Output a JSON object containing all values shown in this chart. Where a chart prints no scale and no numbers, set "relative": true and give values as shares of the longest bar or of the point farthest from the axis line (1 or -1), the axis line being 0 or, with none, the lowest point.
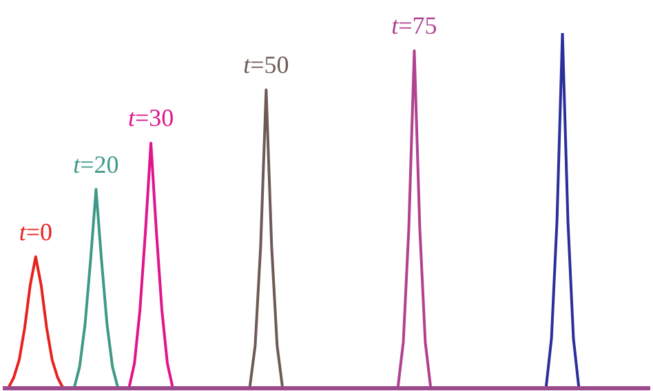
{
  "chart_data": {
    "type": "line",
    "relative": true,
    "grid": false,
    "legend": false,
    "marker": "none",
    "line_style": "solid",
    "categories": [
      null,
      null,
      null,
      null,
      null,
      null,
      null,
      null,
      null,
      null,
      null,
      null,
      null,
      null,
      null,
      null,
      null,
      null,
      null,
      null,
      null,
      null,
      null,
      null,
      null,
      null,
      null,
      null,
      null,
      null,
      null,
      null,
      null,
      null,
      null,
      null,
      null,
      null,
      null,
      null,
      null,
      null,
      null,
      null,
      null,
      null,
      null,
      null,
      null,
      null,
      null,
      null,
      null,
      null,
      null,
      null,
      null,
      null,
      null,
      null,
      null,
      null,
      null,
      null,
      null,
      null,
      null,
      null,
      null,
      null,
      null,
      null,
      null,
      null,
      null,
      null,
      null,
      null,
      null,
      null,
      null,
      null,
      null,
      null,
      null,
      null,
      null,
      null,
      null,
      null,
      null,
      null,
      null,
      null,
      null,
      null,
      null,
      null,
      null,
      null,
      null,
      null,
      null,
      null,
      null,
      null,
      null,
      null,
      null,
      null,
      null,
      null,
      null,
      null,
      null,
      null,
      null,
      null,
      null
    ],
    "series": [
      {
        "name": "t=0",
        "color": "#e8221f",
        "values": [
          null,
          0,
          0.03,
          0.08,
          0.17,
          0.29,
          0.37,
          0.29,
          0.17,
          0.08,
          0.03,
          0,
          null,
          null,
          null,
          null,
          null,
          null,
          null,
          null,
          null,
          null,
          null,
          null,
          null,
          null,
          null,
          null,
          null,
          null,
          null,
          null,
          null,
          null,
          null,
          null,
          null,
          null,
          null,
          null,
          null,
          null,
          null,
          null,
          null,
          null,
          null,
          null,
          null,
          null,
          null,
          null,
          null,
          null,
          null,
          null,
          null,
          null,
          null,
          null,
          null,
          null,
          null,
          null,
          null,
          null,
          null,
          null,
          null,
          null,
          null,
          null,
          null,
          null,
          null,
          null,
          null,
          null,
          null,
          null,
          null,
          null,
          null,
          null,
          null,
          null,
          null,
          null,
          null,
          null,
          null,
          null,
          null,
          null,
          null,
          null,
          null,
          null,
          null,
          null,
          null,
          null,
          null,
          null,
          null,
          null,
          null,
          null,
          null,
          null,
          null,
          null,
          null,
          null,
          null,
          null,
          null,
          null,
          null
        ]
      },
      {
        "name": "t=20",
        "color": "#3e9a86",
        "values": [
          null,
          null,
          null,
          null,
          null,
          null,
          null,
          null,
          null,
          null,
          null,
          null,
          null,
          0,
          0.06,
          0.18,
          0.36,
          0.56,
          0.36,
          0.18,
          0.06,
          0,
          null,
          null,
          null,
          null,
          null,
          null,
          null,
          null,
          null,
          null,
          null,
          null,
          null,
          null,
          null,
          null,
          null,
          null,
          null,
          null,
          null,
          null,
          null,
          null,
          null,
          null,
          null,
          null,
          null,
          null,
          null,
          null,
          null,
          null,
          null,
          null,
          null,
          null,
          null,
          null,
          null,
          null,
          null,
          null,
          null,
          null,
          null,
          null,
          null,
          null,
          null,
          null,
          null,
          null,
          null,
          null,
          null,
          null,
          null,
          null,
          null,
          null,
          null,
          null,
          null,
          null,
          null,
          null,
          null,
          null,
          null,
          null,
          null,
          null,
          null,
          null,
          null,
          null,
          null,
          null,
          null,
          null,
          null,
          null,
          null,
          null,
          null,
          null,
          null,
          null,
          null,
          null,
          null,
          null,
          null,
          null,
          null
        ]
      },
      {
        "name": "t=30",
        "color": "#e0158c",
        "values": [
          null,
          null,
          null,
          null,
          null,
          null,
          null,
          null,
          null,
          null,
          null,
          null,
          null,
          null,
          null,
          null,
          null,
          null,
          null,
          null,
          null,
          null,
          null,
          0,
          0.07,
          0.22,
          0.44,
          0.69,
          0.44,
          0.22,
          0.07,
          0,
          null,
          null,
          null,
          null,
          null,
          null,
          null,
          null,
          null,
          null,
          null,
          null,
          null,
          null,
          null,
          null,
          null,
          null,
          null,
          null,
          null,
          null,
          null,
          null,
          null,
          null,
          null,
          null,
          null,
          null,
          null,
          null,
          null,
          null,
          null,
          null,
          null,
          null,
          null,
          null,
          null,
          null,
          null,
          null,
          null,
          null,
          null,
          null,
          null,
          null,
          null,
          null,
          null,
          null,
          null,
          null,
          null,
          null,
          null,
          null,
          null,
          null,
          null,
          null,
          null,
          null,
          null,
          null,
          null,
          null,
          null,
          null,
          null,
          null,
          null,
          null,
          null,
          null,
          null,
          null,
          null,
          null,
          null,
          null,
          null,
          null,
          null
        ]
      },
      {
        "name": "t=50",
        "color": "#6e5a55",
        "values": [
          null,
          null,
          null,
          null,
          null,
          null,
          null,
          null,
          null,
          null,
          null,
          null,
          null,
          null,
          null,
          null,
          null,
          null,
          null,
          null,
          null,
          null,
          null,
          null,
          null,
          null,
          null,
          null,
          null,
          null,
          null,
          null,
          null,
          null,
          null,
          null,
          null,
          null,
          null,
          null,
          null,
          null,
          null,
          null,
          null,
          0,
          0.12,
          0.4,
          0.84,
          0.4,
          0.12,
          0,
          null,
          null,
          null,
          null,
          null,
          null,
          null,
          null,
          null,
          null,
          null,
          null,
          null,
          null,
          null,
          null,
          null,
          null,
          null,
          null,
          null,
          null,
          null,
          null,
          null,
          null,
          null,
          null,
          null,
          null,
          null,
          null,
          null,
          null,
          null,
          null,
          null,
          null,
          null,
          null,
          null,
          null,
          null,
          null,
          null,
          null,
          null,
          null,
          null,
          null,
          null,
          null,
          null,
          null,
          null,
          null,
          null,
          null,
          null,
          null,
          null,
          null,
          null,
          null,
          null,
          null,
          null
        ]
      },
      {
        "name": "t=75",
        "color": "#b0428f",
        "values": [
          null,
          null,
          null,
          null,
          null,
          null,
          null,
          null,
          null,
          null,
          null,
          null,
          null,
          null,
          null,
          null,
          null,
          null,
          null,
          null,
          null,
          null,
          null,
          null,
          null,
          null,
          null,
          null,
          null,
          null,
          null,
          null,
          null,
          null,
          null,
          null,
          null,
          null,
          null,
          null,
          null,
          null,
          null,
          null,
          null,
          null,
          null,
          null,
          null,
          null,
          null,
          null,
          null,
          null,
          null,
          null,
          null,
          null,
          null,
          null,
          null,
          null,
          null,
          null,
          null,
          null,
          null,
          null,
          null,
          null,
          null,
          null,
          0,
          0.13,
          0.45,
          0.95,
          0.45,
          0.13,
          0,
          null,
          null,
          null,
          null,
          null,
          null,
          null,
          null,
          null,
          null,
          null,
          null,
          null,
          null,
          null,
          null,
          null,
          null,
          null,
          null,
          null,
          null,
          null,
          null,
          null,
          null,
          null,
          null,
          null,
          null,
          null,
          null,
          null,
          null,
          null,
          null,
          null,
          null,
          null,
          null
        ]
      },
      {
        "color": "#2a2f9a",
        "values": [
          null,
          null,
          null,
          null,
          null,
          null,
          null,
          null,
          null,
          null,
          null,
          null,
          null,
          null,
          null,
          null,
          null,
          null,
          null,
          null,
          null,
          null,
          null,
          null,
          null,
          null,
          null,
          null,
          null,
          null,
          null,
          null,
          null,
          null,
          null,
          null,
          null,
          null,
          null,
          null,
          null,
          null,
          null,
          null,
          null,
          null,
          null,
          null,
          null,
          null,
          null,
          null,
          null,
          null,
          null,
          null,
          null,
          null,
          null,
          null,
          null,
          null,
          null,
          null,
          null,
          null,
          null,
          null,
          null,
          null,
          null,
          null,
          null,
          null,
          null,
          null,
          null,
          null,
          null,
          null,
          null,
          null,
          null,
          null,
          null,
          null,
          null,
          null,
          null,
          null,
          null,
          null,
          null,
          null,
          null,
          null,
          null,
          null,
          null,
          0,
          0.14,
          0.47,
          1,
          0.47,
          0.14,
          0,
          null,
          null,
          null,
          null,
          null,
          null,
          null,
          null,
          null,
          null,
          null,
          null,
          null
        ]
      }
    ]
  }
}
